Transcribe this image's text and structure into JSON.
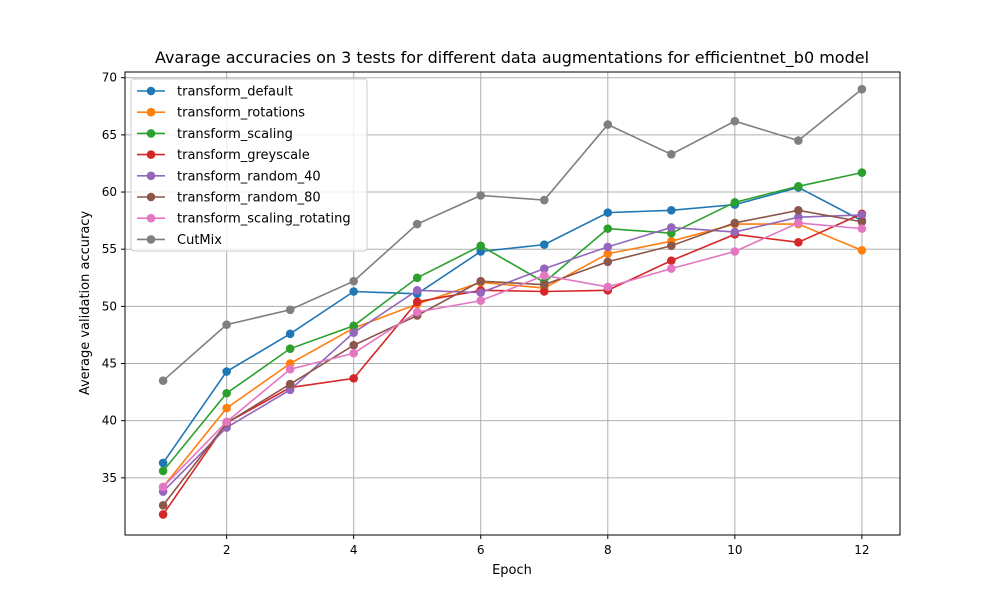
{
  "chart_data": {
    "type": "line",
    "title": "Avarage accuracies on 3 tests for different data augmentations for efficientnet_b0 model",
    "xlabel": "Epoch",
    "ylabel": "Average validation accuracy",
    "x": [
      1,
      2,
      3,
      4,
      5,
      6,
      7,
      8,
      9,
      10,
      11,
      12
    ],
    "xlim": [
      0.4,
      12.6
    ],
    "ylim": [
      30.0,
      70.5
    ],
    "xticks": [
      2,
      4,
      6,
      8,
      10,
      12
    ],
    "yticks": [
      35,
      40,
      45,
      50,
      55,
      60,
      65,
      70
    ],
    "grid": true,
    "legend": "top-left",
    "series": [
      {
        "name": "transform_default",
        "color": "#1f77b4",
        "values": [
          36.3,
          44.3,
          47.6,
          51.3,
          51.1,
          54.8,
          55.4,
          58.2,
          58.4,
          58.9,
          60.4,
          57.5
        ]
      },
      {
        "name": "transform_rotations",
        "color": "#ff7f0e",
        "values": [
          34.2,
          41.1,
          45.0,
          48.1,
          50.2,
          52.1,
          51.6,
          54.6,
          55.7,
          57.2,
          57.2,
          54.9
        ]
      },
      {
        "name": "transform_scaling",
        "color": "#2ca02c",
        "values": [
          35.6,
          42.4,
          46.3,
          48.3,
          52.5,
          55.3,
          52.1,
          56.8,
          56.4,
          59.1,
          60.5,
          61.7
        ]
      },
      {
        "name": "transform_greyscale",
        "color": "#d62728",
        "values": [
          31.8,
          39.8,
          42.9,
          43.7,
          50.4,
          51.4,
          51.3,
          51.4,
          54.0,
          56.3,
          55.6,
          58.1
        ]
      },
      {
        "name": "transform_random_40",
        "color": "#9467bd",
        "values": [
          33.8,
          39.4,
          42.7,
          47.7,
          51.4,
          51.2,
          53.3,
          55.2,
          56.9,
          56.5,
          57.8,
          58.0
        ]
      },
      {
        "name": "transform_random_80",
        "color": "#8c564b",
        "values": [
          32.6,
          39.8,
          43.2,
          46.6,
          49.2,
          52.2,
          51.9,
          53.9,
          55.3,
          57.3,
          58.4,
          57.4
        ]
      },
      {
        "name": "transform_scaling_rotating",
        "color": "#e377c2",
        "values": [
          34.2,
          39.9,
          44.5,
          45.9,
          49.5,
          50.5,
          52.7,
          51.7,
          53.3,
          54.8,
          57.3,
          56.8
        ]
      },
      {
        "name": "CutMix",
        "color": "#7f7f7f",
        "values": [
          43.5,
          48.4,
          49.7,
          52.2,
          57.2,
          59.7,
          59.3,
          65.9,
          63.3,
          66.2,
          64.5,
          69.0
        ]
      }
    ]
  }
}
